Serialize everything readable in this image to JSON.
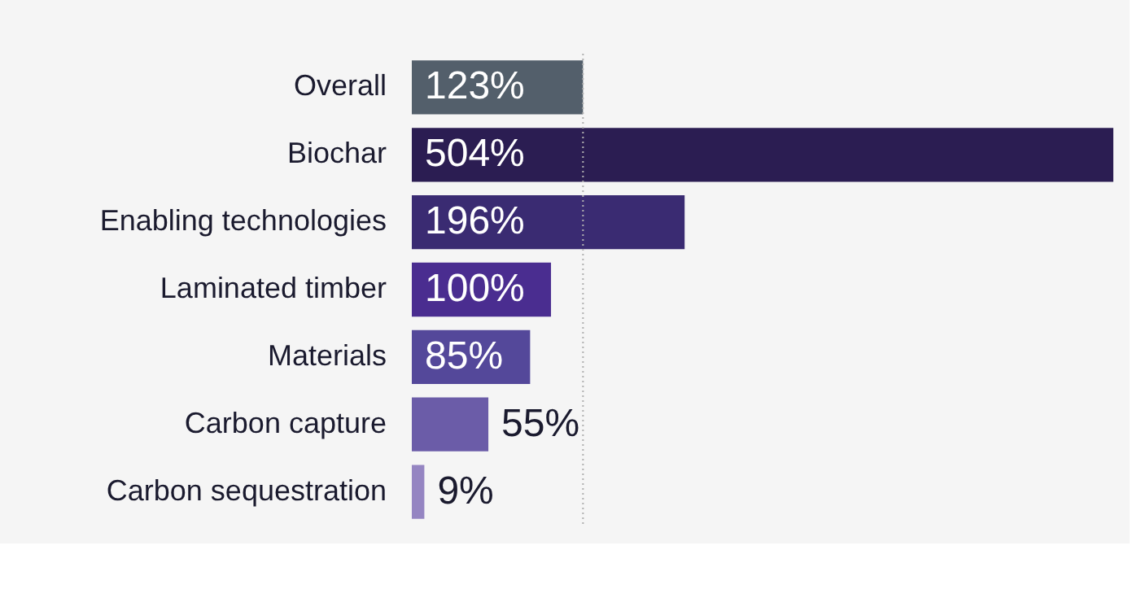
{
  "chart_data": {
    "type": "bar",
    "orientation": "horizontal",
    "categories": [
      "Overall",
      "Biochar",
      "Enabling technologies",
      "Laminated timber",
      "Materials",
      "Carbon capture",
      "Carbon sequestration"
    ],
    "values": [
      123,
      504,
      196,
      100,
      85,
      55,
      9
    ],
    "value_labels": [
      "123%",
      "504%",
      "196%",
      "100%",
      "85%",
      "55%",
      "9%"
    ],
    "colors": [
      "#535f6b",
      "#2b1d52",
      "#3a2b72",
      "#4a2d90",
      "#54489a",
      "#6b5ca8",
      "#9585c2"
    ],
    "ref_lines": [
      {
        "axis": "x",
        "value": 123,
        "color": "#b0b0b0",
        "line_style": "dotted"
      }
    ],
    "tick_labels": "y"
  }
}
